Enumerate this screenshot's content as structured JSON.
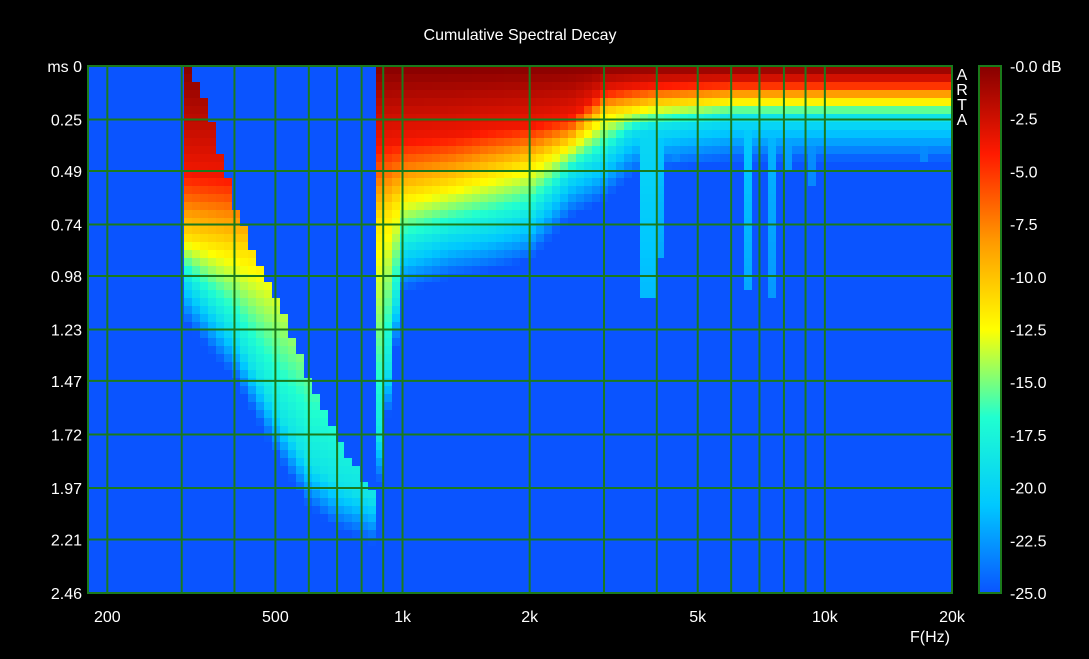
{
  "chart_data": {
    "type": "heatmap",
    "title": "Cumulative Spectral Decay",
    "watermark": "ARTA",
    "xlabel": "F(Hz)",
    "ylabel": "ms",
    "x_scale": "log",
    "xlim": [
      180,
      20000
    ],
    "ylim": [
      0,
      2.46
    ],
    "x_ticks": [
      {
        "value": 200,
        "label": "200"
      },
      {
        "value": 500,
        "label": "500"
      },
      {
        "value": 1000,
        "label": "1k"
      },
      {
        "value": 2000,
        "label": "2k"
      },
      {
        "value": 5000,
        "label": "5k"
      },
      {
        "value": 10000,
        "label": "10k"
      },
      {
        "value": 20000,
        "label": "20k"
      }
    ],
    "x_gridlines": [
      200,
      300,
      400,
      500,
      600,
      700,
      800,
      900,
      1000,
      2000,
      3000,
      4000,
      5000,
      6000,
      7000,
      8000,
      9000,
      10000,
      20000
    ],
    "y_ticks": [
      0,
      0.25,
      0.49,
      0.74,
      0.98,
      1.23,
      1.47,
      1.72,
      1.97,
      2.21,
      2.46
    ],
    "y_tick_labels": [
      "ms 0",
      "0.25",
      "0.49",
      "0.74",
      "0.98",
      "1.23",
      "1.47",
      "1.72",
      "1.97",
      "2.21",
      "2.46"
    ],
    "colorbar": {
      "min": -25.0,
      "max": 0.0,
      "labels": [
        "-0.0 dB",
        "-2.5",
        "-5.0",
        "-7.5",
        "-10.0",
        "-12.5",
        "-15.0",
        "-17.5",
        "-20.0",
        "-22.5",
        "-25.0"
      ]
    },
    "decay_onset_ms": [
      [
        180,
        2.46
      ],
      [
        300,
        2.46
      ],
      [
        310,
        0.0
      ],
      [
        330,
        0.1
      ],
      [
        350,
        0.25
      ],
      [
        370,
        0.4
      ],
      [
        400,
        0.65
      ],
      [
        430,
        0.8
      ],
      [
        470,
        0.98
      ],
      [
        520,
        1.15
      ],
      [
        560,
        1.3
      ],
      [
        600,
        1.45
      ],
      [
        650,
        1.6
      ],
      [
        700,
        1.72
      ],
      [
        760,
        1.85
      ],
      [
        820,
        1.95
      ],
      [
        850,
        2.0
      ]
    ],
    "decay_profile": [
      {
        "f": 310,
        "red_ms": 0.5,
        "yellow_ms": 0.8,
        "cyan_ms": 1.0
      },
      {
        "f": 400,
        "red_ms": 0.52,
        "yellow_ms": 0.85,
        "cyan_ms": 1.25
      },
      {
        "f": 500,
        "red_ms": 0.45,
        "yellow_ms": 0.9,
        "cyan_ms": 1.6
      },
      {
        "f": 600,
        "red_ms": 0.42,
        "yellow_ms": 0.95,
        "cyan_ms": 1.85
      },
      {
        "f": 700,
        "red_ms": 0.4,
        "yellow_ms": 0.88,
        "cyan_ms": 1.95
      },
      {
        "f": 850,
        "red_ms": 0.38,
        "yellow_ms": 0.75,
        "cyan_ms": 2.02
      },
      {
        "f": 1000,
        "red_ms": 0.35,
        "yellow_ms": 0.6,
        "cyan_ms": 0.85
      },
      {
        "f": 1300,
        "red_ms": 0.33,
        "yellow_ms": 0.55,
        "cyan_ms": 0.78
      },
      {
        "f": 1600,
        "red_ms": 0.3,
        "yellow_ms": 0.5,
        "cyan_ms": 0.75
      },
      {
        "f": 2000,
        "red_ms": 0.28,
        "yellow_ms": 0.45,
        "cyan_ms": 0.7
      },
      {
        "f": 2500,
        "red_ms": 0.24,
        "yellow_ms": 0.36,
        "cyan_ms": 0.5
      },
      {
        "f": 3000,
        "red_ms": 0.12,
        "yellow_ms": 0.22,
        "cyan_ms": 0.42
      },
      {
        "f": 3500,
        "red_ms": 0.1,
        "yellow_ms": 0.2,
        "cyan_ms": 0.3
      },
      {
        "f": 4000,
        "red_ms": 0.09,
        "yellow_ms": 0.18,
        "cyan_ms": 0.28
      },
      {
        "f": 6000,
        "red_ms": 0.08,
        "yellow_ms": 0.16,
        "cyan_ms": 0.24
      },
      {
        "f": 10000,
        "red_ms": 0.08,
        "yellow_ms": 0.16,
        "cyan_ms": 0.24
      },
      {
        "f": 20000,
        "red_ms": 0.08,
        "yellow_ms": 0.16,
        "cyan_ms": 0.24
      }
    ],
    "resonance_tails": [
      {
        "f": 3800,
        "end_ms": 1.1,
        "peak_db": -19
      },
      {
        "f": 4000,
        "end_ms": 0.9,
        "peak_db": -20
      },
      {
        "f": 4400,
        "end_ms": 0.45,
        "peak_db": -22
      },
      {
        "f": 6600,
        "end_ms": 1.05,
        "peak_db": -20
      },
      {
        "f": 7400,
        "end_ms": 1.1,
        "peak_db": -21
      },
      {
        "f": 8200,
        "end_ms": 0.5,
        "peak_db": -21
      },
      {
        "f": 9400,
        "end_ms": 0.55,
        "peak_db": -22
      },
      {
        "f": 17000,
        "end_ms": 0.45,
        "peak_db": -22
      }
    ],
    "grid": true,
    "colorscale": [
      "#0a54ff",
      "#00c8ff",
      "#20ffd0",
      "#ffff00",
      "#ff9a00",
      "#ff1a00",
      "#860000"
    ],
    "grid_color": "#1b7a1b",
    "background": "#000000"
  }
}
